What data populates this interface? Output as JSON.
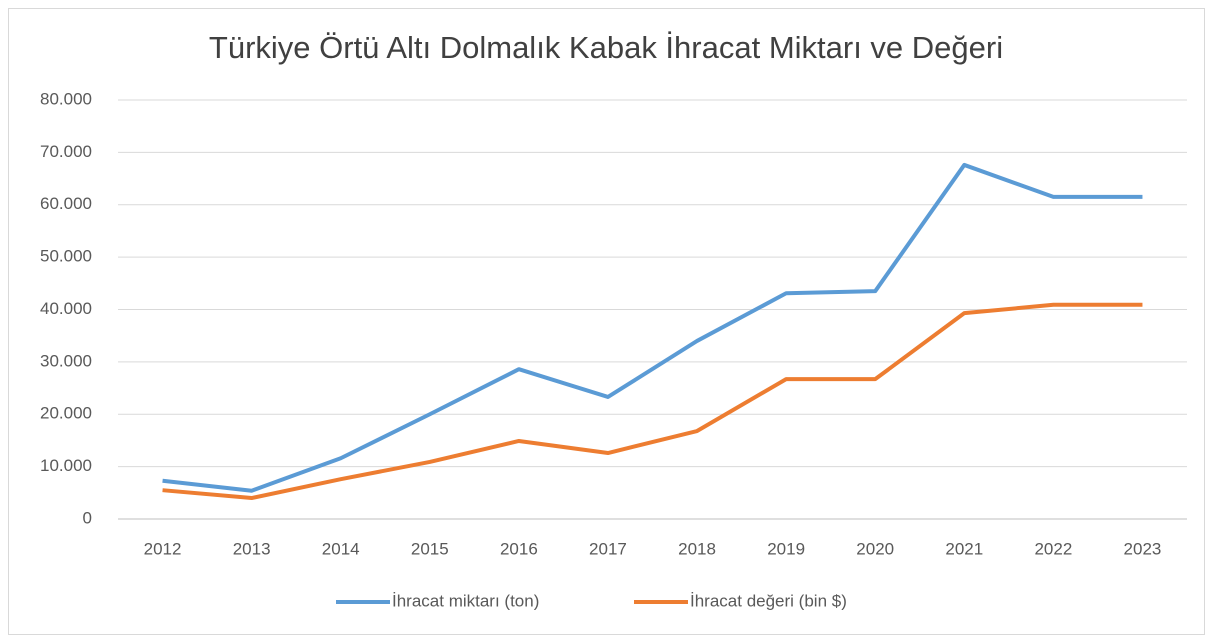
{
  "chart_data": {
    "type": "line",
    "title": "Türkiye Örtü Altı Dolmalık Kabak İhracat Miktarı ve Değeri",
    "categories": [
      "2012",
      "2013",
      "2014",
      "2015",
      "2016",
      "2017",
      "2018",
      "2019",
      "2020",
      "2021",
      "2022",
      "2023"
    ],
    "series": [
      {
        "name": "İhracat miktarı (ton)",
        "color": "#5b9bd5",
        "values": [
          7300,
          5400,
          11600,
          20000,
          28600,
          23300,
          34000,
          43100,
          43500,
          67600,
          61500,
          61500
        ]
      },
      {
        "name": "İhracat değeri (bin $)",
        "color": "#ed7d31",
        "values": [
          5500,
          4000,
          7600,
          10900,
          14900,
          12600,
          16800,
          26700,
          26700,
          39300,
          40900,
          40900
        ]
      }
    ],
    "ylim": [
      0,
      80000
    ],
    "yticks": [
      0,
      {
        "value": 10000,
        "label": "10.000"
      },
      {
        "value": 20000,
        "label": "20.000"
      },
      {
        "value": 30000,
        "label": "30.000"
      },
      {
        "value": 40000,
        "label": "40.000"
      },
      {
        "value": 50000,
        "label": "50.000"
      },
      {
        "value": 60000,
        "label": "60.000"
      },
      {
        "value": 70000,
        "label": "70.000"
      },
      {
        "value": 80000,
        "label": "80.000"
      }
    ],
    "grid": true,
    "legend": "bottom"
  }
}
